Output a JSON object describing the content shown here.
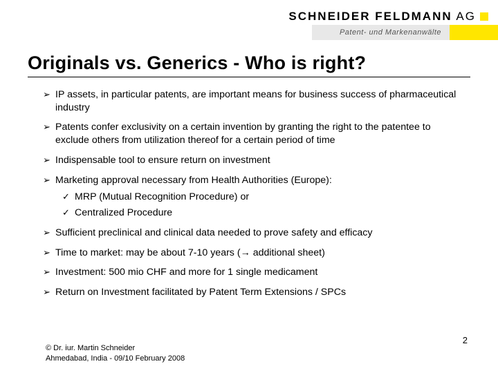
{
  "header": {
    "company_bold": "SCHNEIDER FELDMANN",
    "company_light": " AG",
    "tagline": "Patent- und Markenanwälte",
    "colors": {
      "yellow": "#ffe600",
      "tagbg": "#e8e8e8"
    }
  },
  "title": "Originals vs. Generics - Who is right?",
  "bullets": [
    {
      "lvl": 1,
      "text": "IP assets, in particular patents, are important means for business success of pharmaceutical industry"
    },
    {
      "lvl": 1,
      "text": "Patents confer exclusivity on a certain invention by granting the right to the patentee to exclude others from utilization thereof for a certain period of time"
    },
    {
      "lvl": 1,
      "text": "Indispensable tool to ensure return on investment"
    },
    {
      "lvl": 1,
      "text": "Marketing approval necessary from Health Authorities (Europe):"
    },
    {
      "lvl": 2,
      "text": "MRP (Mutual Recognition Procedure) or"
    },
    {
      "lvl": 2,
      "text": "Centralized Procedure"
    },
    {
      "lvl": 1,
      "text": "Sufficient preclinical and clinical data needed to prove safety and efficacy"
    },
    {
      "lvl": 1,
      "text": "Time to market: may be about 7-10 years (→ additional sheet)"
    },
    {
      "lvl": 1,
      "text": "Investment: 500 mio CHF and more for 1 single medicament"
    },
    {
      "lvl": 1,
      "text": "Return on Investment facilitated by Patent Term Extensions / SPCs"
    }
  ],
  "footer": {
    "copyright": "© Dr. iur. Martin Schneider",
    "location_date": "Ahmedabad, India - 09/10 February 2008"
  },
  "page_number": "2"
}
